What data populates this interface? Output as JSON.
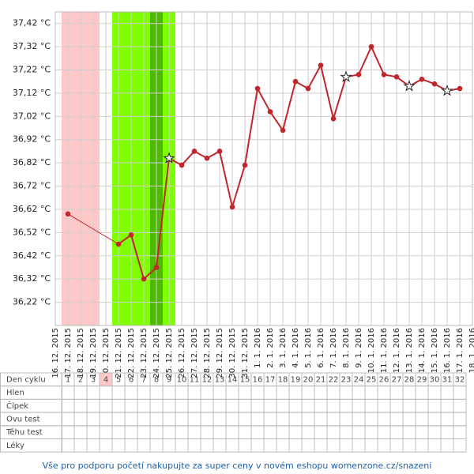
{
  "chart_data": {
    "type": "line",
    "categories": [
      "16. 12. 2015",
      "17. 12. 2015",
      "18. 12. 2015",
      "19. 12. 2015",
      "20. 12. 2015",
      "21. 12. 2015",
      "22. 12. 2015",
      "23. 12. 2015",
      "24. 12. 2015",
      "25. 12. 2015",
      "26. 12. 2015",
      "27. 12. 2015",
      "28. 12. 2015",
      "29. 12. 2015",
      "30. 12. 2015",
      "31. 12. 2015",
      "1. 1. 2016",
      "2. 1. 2016",
      "3. 1. 2016",
      "4. 1. 2016",
      "5. 1. 2016",
      "6. 1. 2016",
      "7. 1. 2016",
      "8. 1. 2016",
      "9. 1. 2016",
      "10. 1. 2016",
      "11. 1. 2016",
      "12. 1. 2016",
      "13. 1. 2016",
      "14. 1. 2016",
      "15. 1. 2016",
      "16. 1. 2016",
      "17. 1. 2016",
      "18. 1. 2016"
    ],
    "values": [
      null,
      36.6,
      null,
      null,
      null,
      36.47,
      36.51,
      36.32,
      36.37,
      36.84,
      36.81,
      36.87,
      36.84,
      36.87,
      36.63,
      36.81,
      37.14,
      37.04,
      36.96,
      37.17,
      37.14,
      37.24,
      37.01,
      37.19,
      37.2,
      37.32,
      37.2,
      37.19,
      37.15,
      37.18,
      37.16,
      37.13,
      37.14,
      null
    ],
    "markers": [
      null,
      "dot",
      null,
      null,
      null,
      "dot",
      "dot",
      "dot",
      "dot",
      "star",
      "dot",
      "dot",
      "dot",
      "dot",
      "dot",
      "dot",
      "dot",
      "dot",
      "dot",
      "dot",
      "dot",
      "dot",
      "dot",
      "star",
      "dot",
      "dot",
      "dot",
      "dot",
      "star",
      "dot",
      "dot",
      "star",
      "dot",
      null
    ],
    "color": "#c0272d",
    "ylim": [
      36.12,
      37.47
    ],
    "yticks": [
      {
        "value": 36.22,
        "label": "36,22 °C"
      },
      {
        "value": 36.32,
        "label": "36,32 °C"
      },
      {
        "value": 36.42,
        "label": "36,42 °C"
      },
      {
        "value": 36.52,
        "label": "36,52 °C"
      },
      {
        "value": 36.62,
        "label": "36,62 °C"
      },
      {
        "value": 36.72,
        "label": "36,72 °C"
      },
      {
        "value": 36.82,
        "label": "36,82 °C"
      },
      {
        "value": 36.92,
        "label": "36,92 °C"
      },
      {
        "value": 37.02,
        "label": "37,02 °C"
      },
      {
        "value": 37.12,
        "label": "37,12 °C"
      },
      {
        "value": 37.22,
        "label": "37,22 °C"
      },
      {
        "value": 37.32,
        "label": "37,32 °C"
      },
      {
        "value": 37.42,
        "label": "37,42 °C"
      }
    ],
    "grid": true,
    "menstruation_band": [
      1,
      3
    ],
    "fertile_band": [
      5,
      9
    ],
    "ovulation_index": 8,
    "band_colors": {
      "menstruation": "#ffc8c8",
      "fertile": "#80ff00",
      "ovulation": "#4fb800"
    }
  },
  "table": {
    "row_labels": [
      "Den cyklu",
      "Hlen",
      "Čípek",
      "Ovu test",
      "Těhu test",
      "Léky"
    ],
    "cycle_days": [
      1,
      2,
      3,
      4,
      5,
      6,
      7,
      8,
      9,
      10,
      11,
      12,
      13,
      14,
      15,
      16,
      17,
      18,
      19,
      20,
      21,
      22,
      23,
      24,
      25,
      26,
      27,
      28,
      29,
      30,
      31,
      32
    ],
    "highlight_day": 4
  },
  "footer": "Vše pro podporu početí nakupujte za super ceny v novém eshopu womenzone.cz/snazeni"
}
